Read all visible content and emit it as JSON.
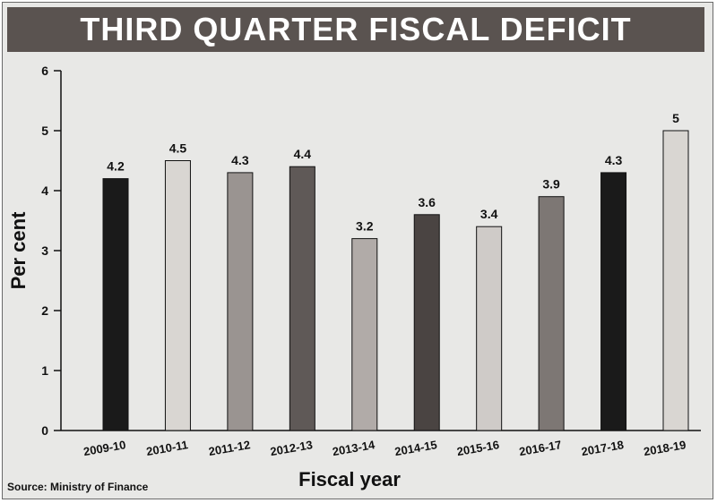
{
  "chart_data": {
    "type": "bar",
    "title": "THIRD QUARTER FISCAL DEFICIT",
    "xlabel": "Fiscal year",
    "ylabel": "Per cent",
    "ylim": [
      0,
      6
    ],
    "yticks": [
      0,
      1,
      2,
      3,
      4,
      5,
      6
    ],
    "categories": [
      "2009-10",
      "2010-11",
      "2011-12",
      "2012-13",
      "2013-14",
      "2014-15",
      "2015-16",
      "2016-17",
      "2017-18",
      "2018-19"
    ],
    "values": [
      4.2,
      4.5,
      4.3,
      4.4,
      3.2,
      3.6,
      3.4,
      3.9,
      4.3,
      5
    ],
    "data_labels": [
      "4.2",
      "4.5",
      "4.3",
      "4.4",
      "3.2",
      "3.6",
      "3.4",
      "3.9",
      "4.3",
      "5"
    ],
    "bar_colors": [
      "#1a1a1a",
      "#d9d6d2",
      "#9a9491",
      "#5f5957",
      "#b1aba8",
      "#4a4442",
      "#cfcbc8",
      "#7d7774",
      "#1a1a1a",
      "#d9d6d2"
    ],
    "grid": false,
    "legend": "none"
  },
  "source": "Source: Ministry of Finance",
  "colors": {
    "title_bg": "#5a5350",
    "panel_bg": "#e8e8e6"
  }
}
